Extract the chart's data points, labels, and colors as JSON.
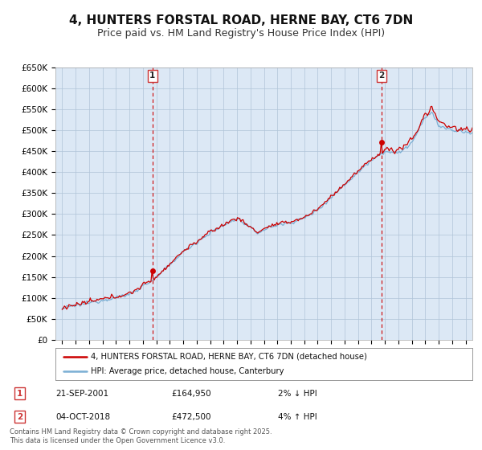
{
  "title": "4, HUNTERS FORSTAL ROAD, HERNE BAY, CT6 7DN",
  "subtitle": "Price paid vs. HM Land Registry's House Price Index (HPI)",
  "ylim": [
    0,
    650000
  ],
  "xlim": [
    1994.5,
    2025.5
  ],
  "yticks": [
    0,
    50000,
    100000,
    150000,
    200000,
    250000,
    300000,
    350000,
    400000,
    450000,
    500000,
    550000,
    600000,
    650000
  ],
  "ytick_labels": [
    "£0",
    "£50K",
    "£100K",
    "£150K",
    "£200K",
    "£250K",
    "£300K",
    "£350K",
    "£400K",
    "£450K",
    "£500K",
    "£550K",
    "£600K",
    "£650K"
  ],
  "hpi_color": "#7bafd4",
  "price_color": "#cc0000",
  "plot_bg_color": "#dce8f5",
  "marker1_year": 2001.72,
  "marker1_value": 164950,
  "marker1_label": "1",
  "marker1_date": "21-SEP-2001",
  "marker1_price": "£164,950",
  "marker1_note": "2% ↓ HPI",
  "marker2_year": 2018.75,
  "marker2_value": 472500,
  "marker2_label": "2",
  "marker2_date": "04-OCT-2018",
  "marker2_price": "£472,500",
  "marker2_note": "4% ↑ HPI",
  "legend_line1": "4, HUNTERS FORSTAL ROAD, HERNE BAY, CT6 7DN (detached house)",
  "legend_line2": "HPI: Average price, detached house, Canterbury",
  "footnote": "Contains HM Land Registry data © Crown copyright and database right 2025.\nThis data is licensed under the Open Government Licence v3.0.",
  "background_color": "#ffffff",
  "grid_color": "#b0c4d8",
  "title_fontsize": 11,
  "subtitle_fontsize": 9
}
